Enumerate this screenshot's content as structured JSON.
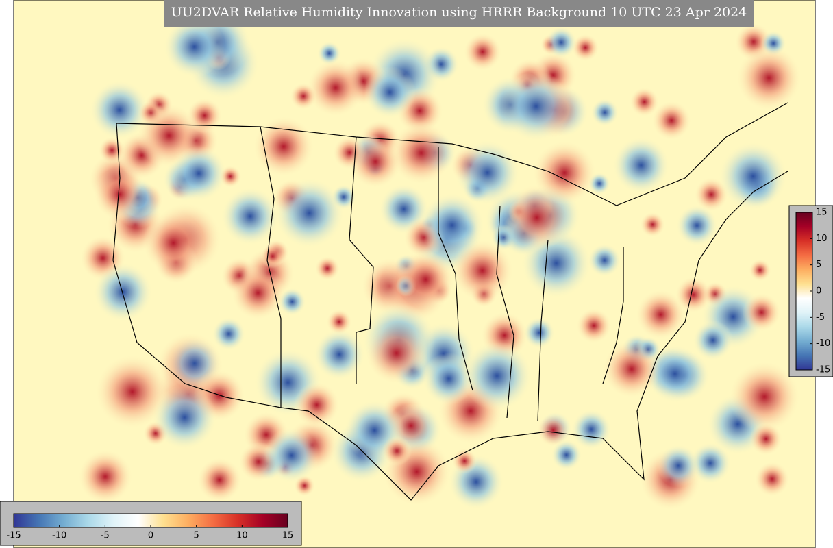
{
  "title": "UU2DVAR Relative Humidity Innovation using HRRR Background 10 UTC 23 Apr 2024",
  "colorbar": {
    "range": [
      -15,
      15
    ],
    "ticks": [
      -15,
      -10,
      -5,
      0,
      5,
      10,
      15
    ]
  }
}
